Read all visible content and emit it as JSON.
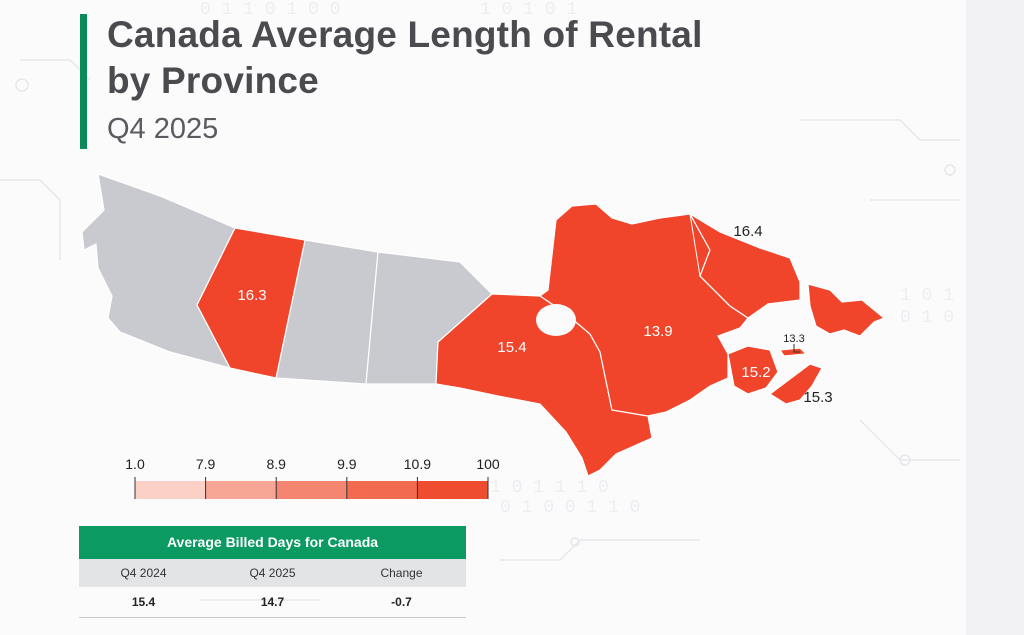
{
  "header": {
    "title_line1": "Canada Average Length of Rental",
    "title_line2": "by Province",
    "subtitle": "Q4 2025"
  },
  "colors": {
    "accent": "#0a8a5a",
    "province_data": "#f0442b",
    "province_nodata": "#c9cacf",
    "table_header": "#0a9a62"
  },
  "map_data": {
    "provinces": [
      {
        "name": "Alberta",
        "value": "16.3"
      },
      {
        "name": "Ontario",
        "value": "15.4"
      },
      {
        "name": "Quebec",
        "value": "13.9"
      },
      {
        "name": "Newfoundland and Labrador",
        "value": "16.4"
      },
      {
        "name": "Prince Edward Island",
        "value": "13.3"
      },
      {
        "name": "New Brunswick",
        "value": "15.2"
      },
      {
        "name": "Nova Scotia",
        "value": "15.3"
      }
    ]
  },
  "legend": {
    "ticks": [
      "1.0",
      "7.9",
      "8.9",
      "9.9",
      "10.9",
      "100"
    ],
    "colors": [
      "#fbd0c6",
      "#f7a695",
      "#f48570",
      "#f26a4f",
      "#ef4d30"
    ]
  },
  "table": {
    "title": "Average Billed Days for Canada",
    "headers": [
      "Q4 2024",
      "Q4 2025",
      "Change"
    ],
    "values": [
      "15.4",
      "14.7",
      "-0.7"
    ]
  }
}
